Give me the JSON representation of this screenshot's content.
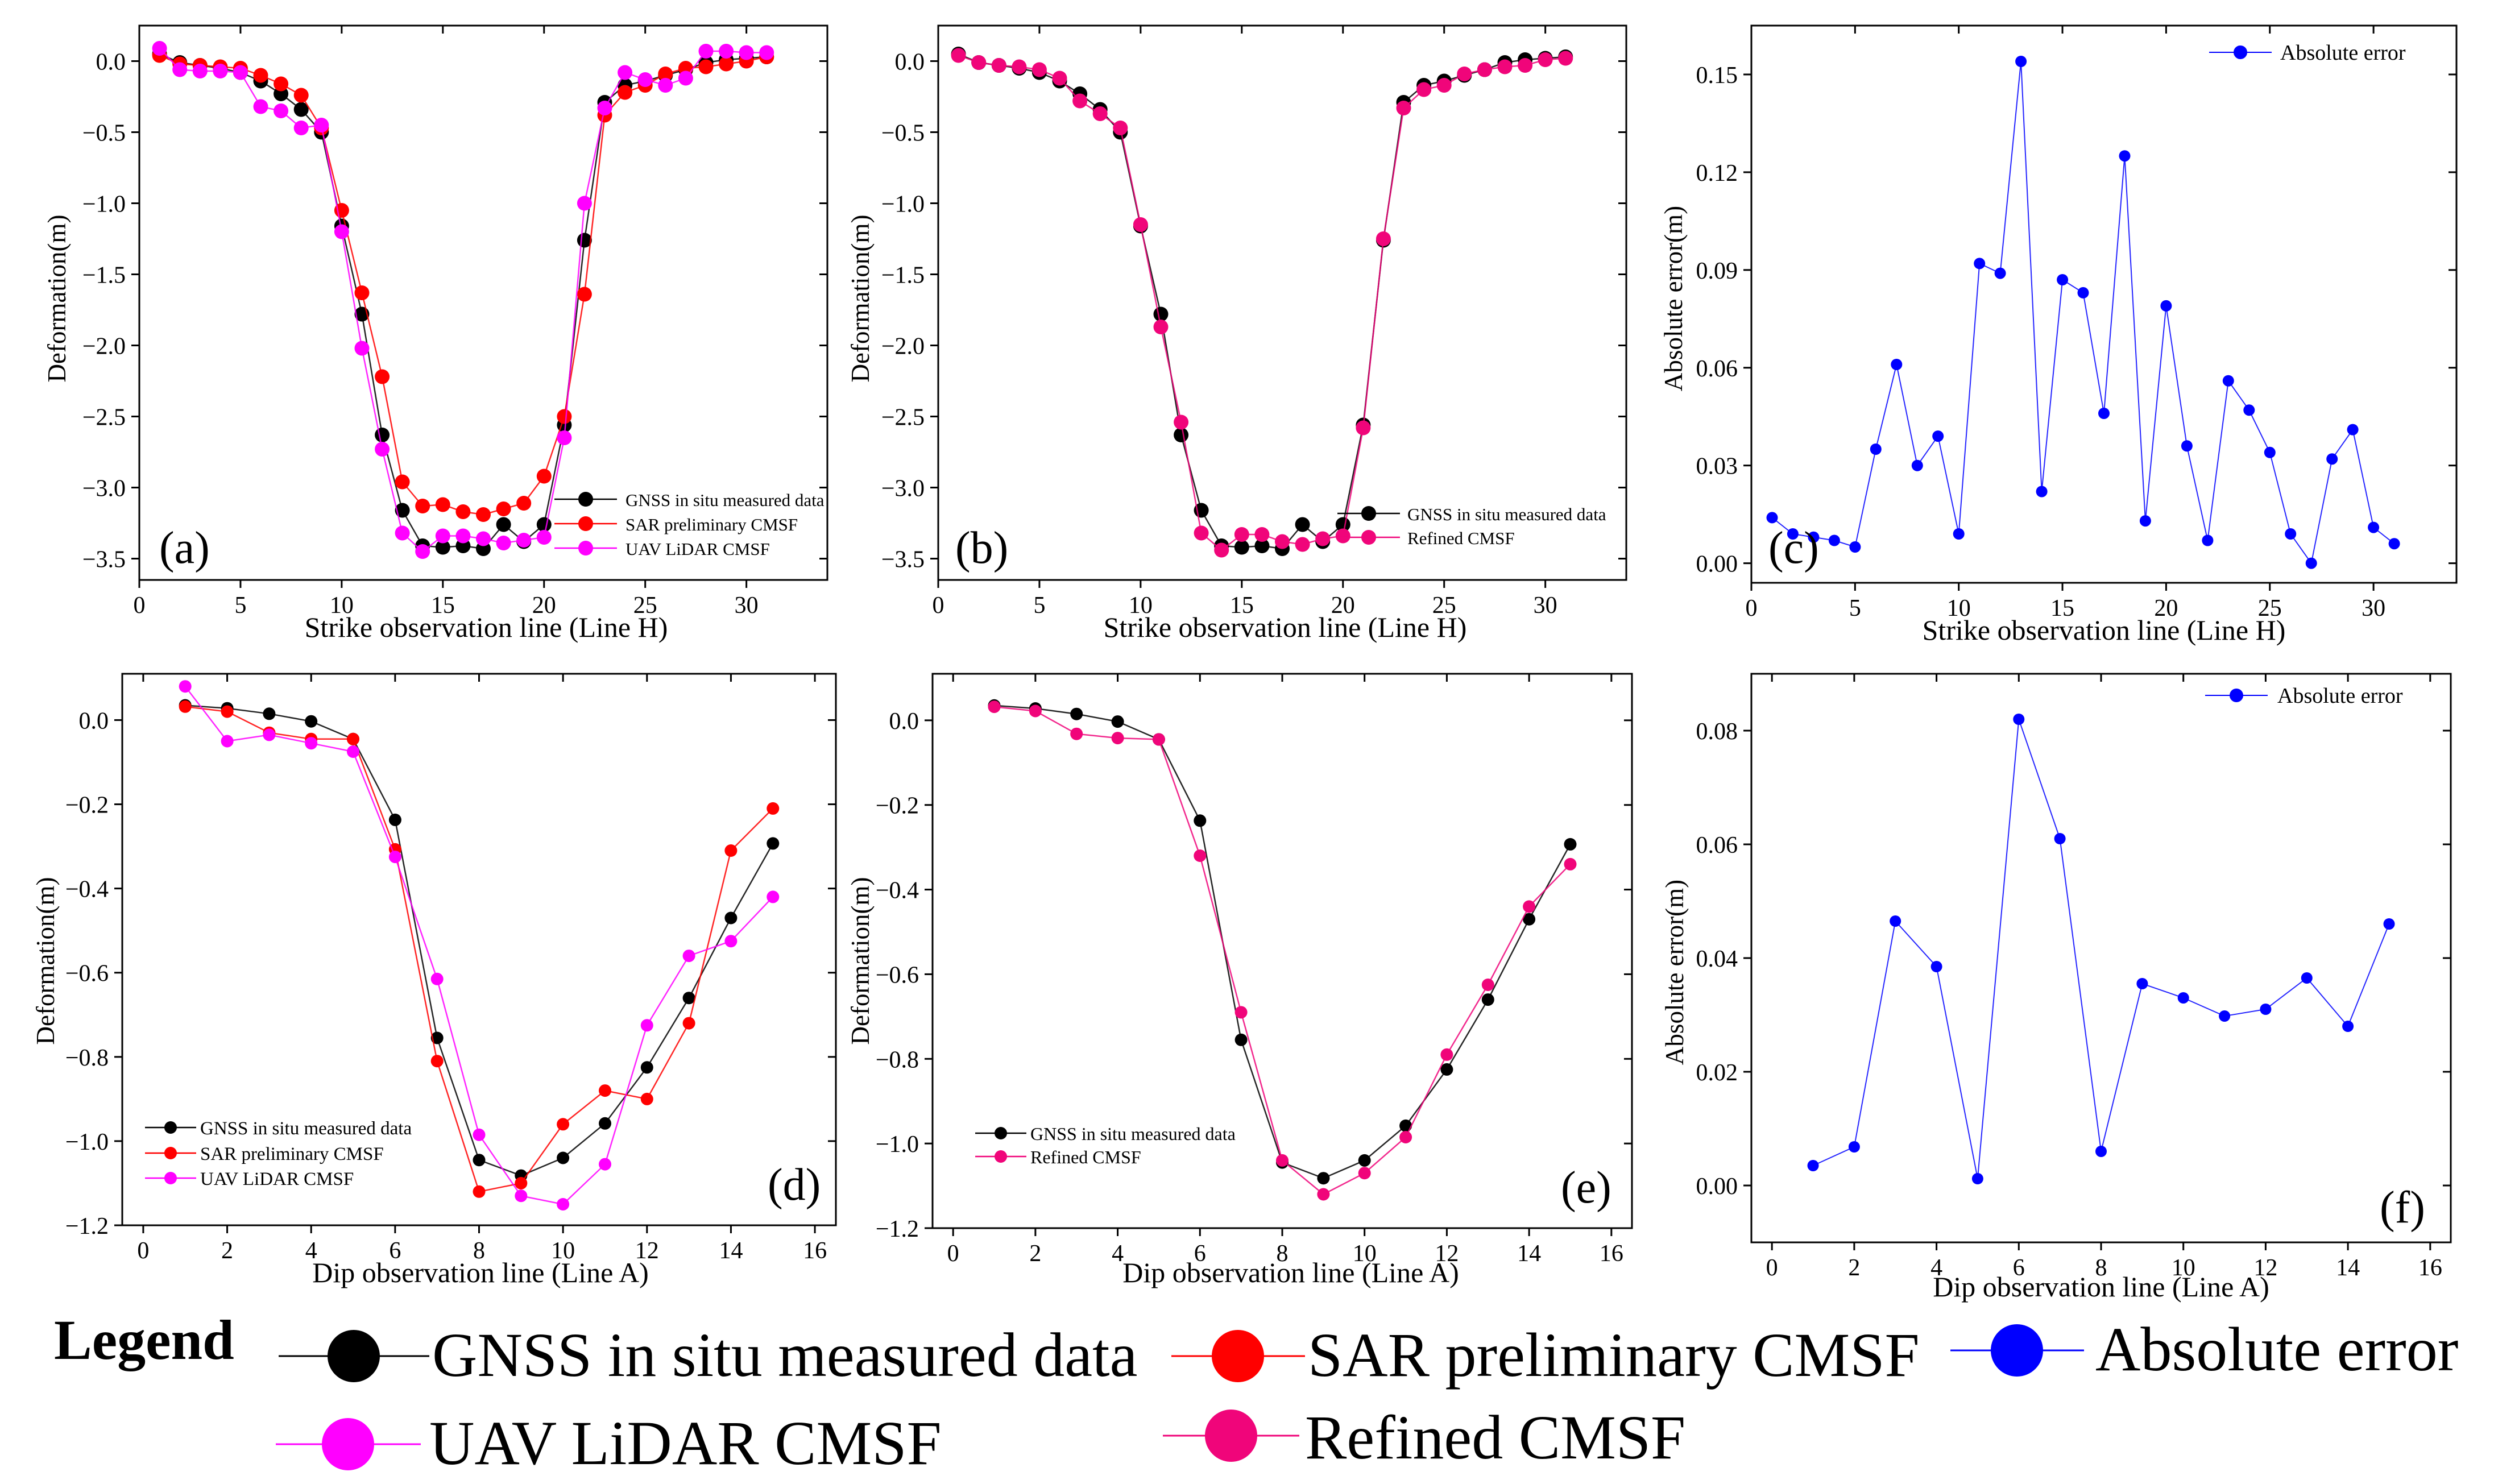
{
  "figure": {
    "legend": {
      "heading": "Legend",
      "entries": [
        {
          "label": "GNSS in situ measured data",
          "color": "#000000"
        },
        {
          "label": "SAR preliminary CMSF",
          "color": "#ff0000"
        },
        {
          "label": "Absolute error",
          "color": "#0000ff"
        },
        {
          "label": "UAV LiDAR CMSF",
          "color": "#ff00ff"
        },
        {
          "label": "Refined CMSF",
          "color": "#f0057a"
        }
      ]
    }
  },
  "chart_data": [
    {
      "id": "a",
      "panel_label": "(a)",
      "type": "line",
      "xlabel": "Strike observation line (Line H)",
      "ylabel": "Deformation(m)",
      "xlim": [
        0,
        34
      ],
      "ylim": [
        -3.65,
        0.25
      ],
      "xticks": [
        0,
        5,
        10,
        15,
        20,
        25,
        30
      ],
      "xtick_labels": [
        "0",
        "5",
        "10",
        "15",
        "20",
        "25",
        "30"
      ],
      "yticks": [
        0,
        -0.5,
        -1,
        -1.5,
        -2,
        -2.5,
        -3,
        -3.5
      ],
      "ytick_labels": [
        "0.0",
        "−0.5",
        "−1.0",
        "−1.5",
        "−2.0",
        "−2.5",
        "−3.0",
        "−3.5"
      ],
      "legend_position": "bottom-right",
      "marker_size": "large",
      "series": [
        {
          "name": "GNSS in situ measured data",
          "color": "#000000",
          "x": [
            1,
            2,
            3,
            4,
            5,
            6,
            7,
            8,
            9,
            10,
            11,
            12,
            13,
            14,
            15,
            16,
            17,
            18,
            19,
            20,
            21,
            22,
            23,
            24,
            25,
            26,
            27,
            28,
            29,
            30,
            31
          ],
          "y": [
            0.05,
            -0.01,
            -0.03,
            -0.05,
            -0.08,
            -0.14,
            -0.23,
            -0.34,
            -0.5,
            -1.16,
            -1.78,
            -2.63,
            -3.16,
            -3.41,
            -3.42,
            -3.41,
            -3.43,
            -3.26,
            -3.38,
            -3.26,
            -2.56,
            -1.26,
            -0.29,
            -0.17,
            -0.14,
            -0.1,
            -0.06,
            -0.01,
            0.01,
            0.02,
            0.03
          ]
        },
        {
          "name": "SAR preliminary CMSF",
          "color": "#ff0000",
          "x": [
            1,
            2,
            3,
            4,
            5,
            6,
            7,
            8,
            9,
            10,
            11,
            12,
            13,
            14,
            15,
            16,
            17,
            18,
            19,
            20,
            21,
            22,
            23,
            24,
            25,
            26,
            27,
            28,
            29,
            30,
            31
          ],
          "y": [
            0.04,
            -0.02,
            -0.03,
            -0.04,
            -0.05,
            -0.1,
            -0.16,
            -0.24,
            -0.47,
            -1.05,
            -1.63,
            -2.22,
            -2.96,
            -3.13,
            -3.12,
            -3.17,
            -3.19,
            -3.15,
            -3.11,
            -2.92,
            -2.5,
            -1.64,
            -0.38,
            -0.22,
            -0.17,
            -0.09,
            -0.05,
            -0.04,
            -0.02,
            0,
            0.03
          ]
        },
        {
          "name": "UAV LiDAR CMSF",
          "color": "#ff00ff",
          "x": [
            1,
            2,
            3,
            4,
            5,
            6,
            7,
            8,
            9,
            10,
            11,
            12,
            13,
            14,
            15,
            16,
            17,
            18,
            19,
            20,
            21,
            22,
            23,
            24,
            25,
            26,
            27,
            28,
            29,
            30,
            31
          ],
          "y": [
            0.09,
            -0.06,
            -0.07,
            -0.07,
            -0.08,
            -0.32,
            -0.35,
            -0.47,
            -0.45,
            -1.2,
            -2.02,
            -2.73,
            -3.32,
            -3.45,
            -3.34,
            -3.34,
            -3.36,
            -3.39,
            -3.37,
            -3.35,
            -2.65,
            -1,
            -0.33,
            -0.08,
            -0.13,
            -0.17,
            -0.12,
            0.07,
            0.07,
            0.06,
            0.06
          ]
        }
      ]
    },
    {
      "id": "b",
      "panel_label": "(b)",
      "type": "line",
      "xlabel": "Strike observation line (Line H)",
      "ylabel": "Deformation(m)",
      "xlim": [
        0,
        34
      ],
      "ylim": [
        -3.65,
        0.25
      ],
      "xticks": [
        0,
        5,
        10,
        15,
        20,
        25,
        30
      ],
      "xtick_labels": [
        "0",
        "5",
        "10",
        "15",
        "20",
        "25",
        "30"
      ],
      "yticks": [
        0,
        -0.5,
        -1,
        -1.5,
        -2,
        -2.5,
        -3,
        -3.5
      ],
      "ytick_labels": [
        "0.0",
        "−0.5",
        "−1.0",
        "−1.5",
        "−2.0",
        "−2.5",
        "−3.0",
        "−3.5"
      ],
      "legend_position": "bottom-right",
      "marker_size": "large",
      "series": [
        {
          "name": "GNSS in situ measured data",
          "color": "#000000",
          "x": [
            1,
            2,
            3,
            4,
            5,
            6,
            7,
            8,
            9,
            10,
            11,
            12,
            13,
            14,
            15,
            16,
            17,
            18,
            19,
            20,
            21,
            22,
            23,
            24,
            25,
            26,
            27,
            28,
            29,
            30,
            31
          ],
          "y": [
            0.05,
            -0.01,
            -0.03,
            -0.05,
            -0.08,
            -0.14,
            -0.23,
            -0.34,
            -0.5,
            -1.16,
            -1.78,
            -2.63,
            -3.16,
            -3.41,
            -3.42,
            -3.41,
            -3.43,
            -3.26,
            -3.38,
            -3.26,
            -2.56,
            -1.26,
            -0.29,
            -0.17,
            -0.14,
            -0.1,
            -0.06,
            -0.01,
            0.01,
            0.02,
            0.03
          ]
        },
        {
          "name": "Refined CMSF",
          "color": "#f0057a",
          "x": [
            1,
            2,
            3,
            4,
            5,
            6,
            7,
            8,
            9,
            10,
            11,
            12,
            13,
            14,
            15,
            16,
            17,
            18,
            19,
            20,
            21,
            22,
            23,
            24,
            25,
            26,
            27,
            28,
            29,
            30,
            31
          ],
          "y": [
            0.04,
            -0.01,
            -0.03,
            -0.04,
            -0.06,
            -0.12,
            -0.28,
            -0.37,
            -0.47,
            -1.15,
            -1.87,
            -2.54,
            -3.32,
            -3.44,
            -3.33,
            -3.33,
            -3.38,
            -3.4,
            -3.36,
            -3.34,
            -2.58,
            -1.25,
            -0.33,
            -0.2,
            -0.17,
            -0.09,
            -0.06,
            -0.04,
            -0.03,
            0.01,
            0.02
          ]
        }
      ]
    },
    {
      "id": "c",
      "panel_label": "(c)",
      "type": "line",
      "xlabel": "Strike observation line (Line H)",
      "ylabel": "Absolute error(m)",
      "xlim": [
        0,
        34
      ],
      "ylim": [
        -0.006,
        0.165
      ],
      "xticks": [
        0,
        5,
        10,
        15,
        20,
        25,
        30
      ],
      "xtick_labels": [
        "0",
        "5",
        "10",
        "15",
        "20",
        "25",
        "30"
      ],
      "yticks": [
        0,
        0.03,
        0.06,
        0.09,
        0.12,
        0.15
      ],
      "ytick_labels": [
        "0.00",
        "0.03",
        "0.06",
        "0.09",
        "0.12",
        "0.15"
      ],
      "legend_position": "top-right",
      "marker_size": "small",
      "series": [
        {
          "name": "Absolute error",
          "color": "#0000ff",
          "x": [
            1,
            2,
            3,
            4,
            5,
            6,
            7,
            8,
            9,
            10,
            11,
            12,
            13,
            14,
            15,
            16,
            17,
            18,
            19,
            20,
            21,
            22,
            23,
            24,
            25,
            26,
            27,
            28,
            29,
            30,
            31
          ],
          "y": [
            0.014,
            0.009,
            0.008,
            0.007,
            0.005,
            0.035,
            0.061,
            0.03,
            0.039,
            0.009,
            0.092,
            0.089,
            0.154,
            0.022,
            0.087,
            0.083,
            0.046,
            0.125,
            0.013,
            0.079,
            0.036,
            0.007,
            0.056,
            0.047,
            0.034,
            0.009,
            0,
            0.032,
            0.041,
            0.011,
            0.006
          ]
        }
      ]
    },
    {
      "id": "d",
      "panel_label": "(d)",
      "type": "line",
      "xlabel": "Dip observation line (Line A)",
      "ylabel": "Deformation(m)",
      "xlim": [
        -0.5,
        16.5
      ],
      "ylim": [
        -1.2,
        0.11
      ],
      "xticks": [
        0,
        2,
        4,
        6,
        8,
        10,
        12,
        14,
        16
      ],
      "xtick_labels": [
        "0",
        "2",
        "4",
        "6",
        "8",
        "10",
        "12",
        "14",
        "16"
      ],
      "yticks": [
        0,
        -0.2,
        -0.4,
        -0.6,
        -0.8,
        -1,
        -1.2
      ],
      "ytick_labels": [
        "0.0",
        "−0.2",
        "−0.4",
        "−0.6",
        "−0.8",
        "−1.0",
        "−1.2"
      ],
      "legend_position": "bottom-left",
      "marker_size": "medium",
      "series": [
        {
          "name": "GNSS in situ measured data",
          "color": "#000000",
          "x": [
            1,
            2,
            3,
            4,
            5,
            6,
            7,
            8,
            9,
            10,
            11,
            12,
            13,
            14,
            15
          ],
          "y": [
            0.035,
            0.028,
            0.015,
            -0.003,
            -0.045,
            -0.237,
            -0.755,
            -1.045,
            -1.082,
            -1.04,
            -0.958,
            -0.825,
            -0.66,
            -0.47,
            -0.293
          ]
        },
        {
          "name": "SAR preliminary CMSF",
          "color": "#ff0000",
          "x": [
            1,
            2,
            3,
            4,
            5,
            6,
            7,
            8,
            9,
            10,
            11,
            12,
            13,
            14,
            15
          ],
          "y": [
            0.032,
            0.02,
            -0.03,
            -0.045,
            -0.045,
            -0.307,
            -0.81,
            -1.12,
            -1.1,
            -0.96,
            -0.88,
            -0.9,
            -0.72,
            -0.31,
            -0.21
          ]
        },
        {
          "name": "UAV LiDAR CMSF",
          "color": "#ff00ff",
          "x": [
            1,
            2,
            3,
            4,
            5,
            6,
            7,
            8,
            9,
            10,
            11,
            12,
            13,
            14,
            15
          ],
          "y": [
            0.08,
            -0.05,
            -0.035,
            -0.055,
            -0.075,
            -0.325,
            -0.615,
            -0.985,
            -1.13,
            -1.15,
            -1.055,
            -0.725,
            -0.56,
            -0.525,
            -0.42
          ]
        }
      ]
    },
    {
      "id": "e",
      "panel_label": "(e)",
      "type": "line",
      "xlabel": "Dip observation line (Line A)",
      "ylabel": "Deformation(m)",
      "xlim": [
        -0.5,
        16.5
      ],
      "ylim": [
        -1.2,
        0.11
      ],
      "xticks": [
        0,
        2,
        4,
        6,
        8,
        10,
        12,
        14,
        16
      ],
      "xtick_labels": [
        "0",
        "2",
        "4",
        "6",
        "8",
        "10",
        "12",
        "14",
        "16"
      ],
      "yticks": [
        0,
        -0.2,
        -0.4,
        -0.6,
        -0.8,
        -1,
        -1.2
      ],
      "ytick_labels": [
        "0.0",
        "−0.2",
        "−0.4",
        "−0.6",
        "−0.8",
        "−1.0",
        "−1.2"
      ],
      "legend_position": "bottom-left",
      "marker_size": "medium",
      "series": [
        {
          "name": "GNSS in situ measured data",
          "color": "#000000",
          "x": [
            1,
            2,
            3,
            4,
            5,
            6,
            7,
            8,
            9,
            10,
            11,
            12,
            13,
            14,
            15
          ],
          "y": [
            0.035,
            0.028,
            0.015,
            -0.003,
            -0.045,
            -0.237,
            -0.755,
            -1.045,
            -1.082,
            -1.04,
            -0.958,
            -0.825,
            -0.66,
            -0.47,
            -0.293
          ]
        },
        {
          "name": "Refined CMSF",
          "color": "#f0057a",
          "x": [
            1,
            2,
            3,
            4,
            5,
            6,
            7,
            8,
            9,
            10,
            11,
            12,
            13,
            14,
            15
          ],
          "y": [
            0.032,
            0.022,
            -0.032,
            -0.042,
            -0.045,
            -0.32,
            -0.69,
            -1.04,
            -1.12,
            -1.07,
            -0.985,
            -0.79,
            -0.625,
            -0.44,
            -0.34
          ]
        }
      ]
    },
    {
      "id": "f",
      "panel_label": "(f)",
      "type": "line",
      "xlabel": "Dip observation line (Line A)",
      "ylabel": "Absolute error(m)",
      "xlim": [
        -0.5,
        16.5
      ],
      "ylim": [
        -0.01,
        0.09
      ],
      "xticks": [
        0,
        2,
        4,
        6,
        8,
        10,
        12,
        14,
        16
      ],
      "xtick_labels": [
        "0",
        "2",
        "4",
        "6",
        "8",
        "10",
        "12",
        "14",
        "16"
      ],
      "yticks": [
        0,
        0.02,
        0.04,
        0.06,
        0.08
      ],
      "ytick_labels": [
        "0.00",
        "0.02",
        "0.04",
        "0.06",
        "0.08"
      ],
      "legend_position": "top-right",
      "marker_size": "small",
      "series": [
        {
          "name": "Absolute error",
          "color": "#0000ff",
          "x": [
            1,
            2,
            3,
            4,
            5,
            6,
            7,
            8,
            9,
            10,
            11,
            12,
            13,
            14,
            15
          ],
          "y": [
            0.0035,
            0.0068,
            0.0465,
            0.0385,
            0.0012,
            0.082,
            0.061,
            0.006,
            0.0355,
            0.033,
            0.0298,
            0.031,
            0.0365,
            0.028,
            0.046
          ]
        }
      ]
    }
  ]
}
